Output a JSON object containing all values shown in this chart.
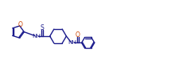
{
  "bg_color": "#ffffff",
  "line_color": "#1a1a8c",
  "text_color": "#1a1a8c",
  "oxygen_color": "#cc4400",
  "sulfur_color": "#1a1a8c",
  "figsize": [
    2.2,
    0.98
  ],
  "dpi": 100,
  "lw": 1.0,
  "fs": 5.2,
  "xlim": [
    0,
    22
  ],
  "ylim": [
    0,
    9.8
  ]
}
